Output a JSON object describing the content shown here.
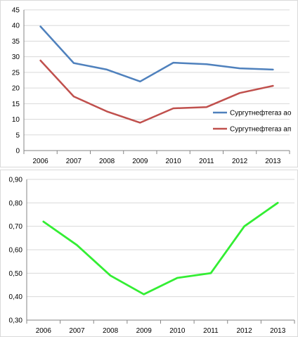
{
  "chart_data": [
    {
      "type": "line",
      "categories": [
        "2006",
        "2007",
        "2008",
        "2009",
        "2010",
        "2011",
        "2012",
        "2013"
      ],
      "series": [
        {
          "name": "Сургутнефтегаз ао",
          "color": "#4f81bd",
          "values": [
            39.7,
            28.0,
            25.9,
            22.1,
            28.1,
            27.6,
            26.3,
            25.9
          ]
        },
        {
          "name": "Сургутнефтегаз ап",
          "color": "#c0504d",
          "values": [
            28.8,
            17.3,
            12.5,
            8.9,
            13.5,
            13.9,
            18.4,
            20.7
          ]
        }
      ],
      "ylim": [
        0,
        45
      ],
      "yticks": [
        "0",
        "5",
        "10",
        "15",
        "20",
        "25",
        "30",
        "35",
        "40",
        "45"
      ],
      "grid": true,
      "legend_position": "right"
    },
    {
      "type": "line",
      "categories": [
        "2006",
        "2007",
        "2008",
        "2009",
        "2010",
        "2011",
        "2012",
        "2013"
      ],
      "series": [
        {
          "color": "#33ee33",
          "values": [
            0.72,
            0.62,
            0.49,
            0.41,
            0.48,
            0.5,
            0.7,
            0.8
          ]
        }
      ],
      "ylim": [
        0.3,
        0.9
      ],
      "yticks": [
        "0,30",
        "0,40",
        "0,50",
        "0,60",
        "0,70",
        "0,80",
        "0,90"
      ],
      "grid": true
    }
  ]
}
